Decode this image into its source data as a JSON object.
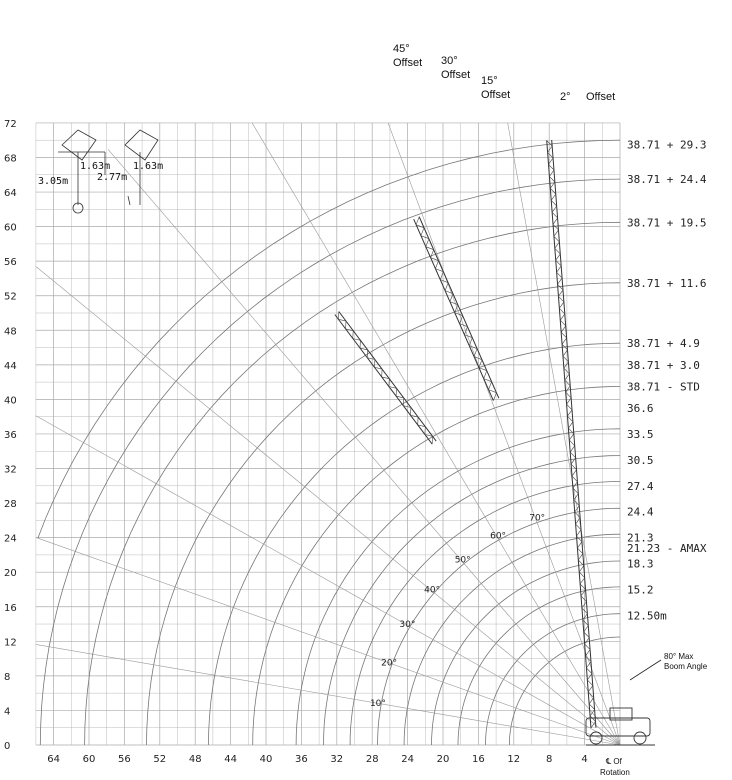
{
  "chart_data": {
    "type": "range-diagram",
    "x_axis": {
      "ticks": [
        64,
        60,
        56,
        52,
        48,
        44,
        40,
        36,
        32,
        28,
        24,
        20,
        16,
        12,
        8,
        4
      ],
      "range": [
        68,
        0
      ]
    },
    "y_axis": {
      "ticks": [
        0,
        4,
        8,
        12,
        16,
        20,
        24,
        28,
        32,
        36,
        40,
        44,
        48,
        52,
        56,
        60,
        64,
        68,
        72
      ],
      "range": [
        0,
        72
      ]
    },
    "boom_length_labels": [
      {
        "text": "38.71 + 29.3",
        "y": 69.5
      },
      {
        "text": "38.71 + 24.4",
        "y": 65.5
      },
      {
        "text": "38.71 + 19.5",
        "y": 60.5
      },
      {
        "text": "38.71 + 11.6",
        "y": 53.5
      },
      {
        "text": "38.71 + 4.9",
        "y": 46.5
      },
      {
        "text": "38.71 + 3.0",
        "y": 44.0
      },
      {
        "text": "38.71 - STD",
        "y": 41.5
      },
      {
        "text": "36.6",
        "y": 39.0
      },
      {
        "text": "33.5",
        "y": 36.0
      },
      {
        "text": "30.5",
        "y": 33.0
      },
      {
        "text": "27.4",
        "y": 30.0
      },
      {
        "text": "24.4",
        "y": 27.0
      },
      {
        "text": "21.3",
        "y": 24.0
      },
      {
        "text": "21.23 - AMAX",
        "y": 22.8
      },
      {
        "text": "18.3",
        "y": 21.0
      },
      {
        "text": "15.2",
        "y": 18.0
      },
      {
        "text": "12.50m",
        "y": 15.0
      }
    ],
    "angle_labels": [
      "10°",
      "20°",
      "30°",
      "40°",
      "50°",
      "60°",
      "70°"
    ],
    "offsets": [
      {
        "line1": "45°",
        "line2": "Offset"
      },
      {
        "line1": "30°",
        "line2": "Offset"
      },
      {
        "line1": "15°",
        "line2": "Offset"
      },
      {
        "line1": "2°",
        "line2": "Offset"
      }
    ],
    "jib_dims": [
      "1.63m",
      "1.63m",
      "3.05m",
      "2.77m"
    ],
    "max_angle_label": [
      "80° Max",
      "Boom Angle"
    ],
    "rotation_label": [
      "℄ Of",
      "Rotation"
    ]
  }
}
